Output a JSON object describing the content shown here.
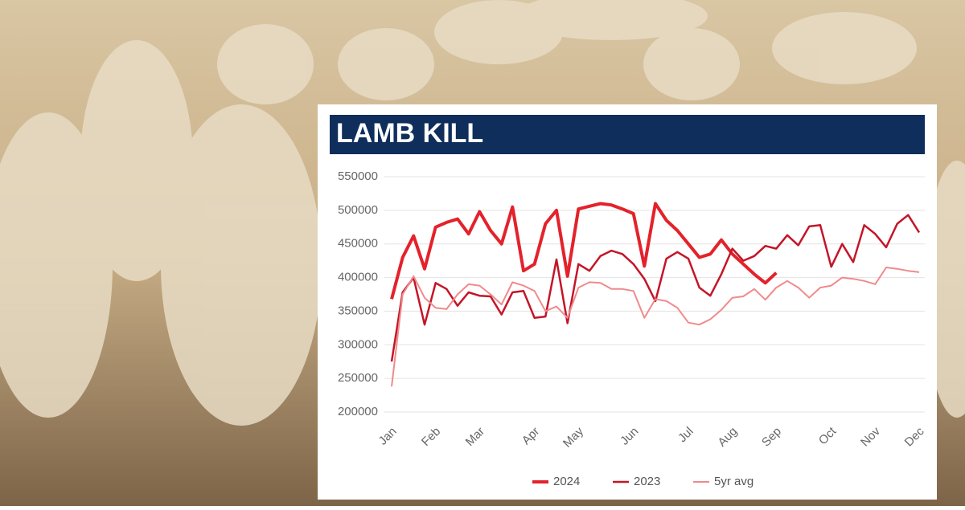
{
  "chart_data": {
    "type": "line",
    "title": "LAMB KILL",
    "categories": [
      "Jan",
      null,
      null,
      null,
      "Feb",
      null,
      null,
      null,
      "Mar",
      null,
      null,
      null,
      null,
      "Apr",
      null,
      null,
      null,
      "May",
      null,
      null,
      null,
      null,
      "Jun",
      null,
      null,
      null,
      null,
      "Jul",
      null,
      null,
      null,
      "Aug",
      null,
      null,
      null,
      "Sep",
      null,
      null,
      null,
      null,
      "Oct",
      null,
      null,
      null,
      "Nov",
      null,
      null,
      null,
      "Dec"
    ],
    "series": [
      {
        "name": "2024",
        "color": "#e3222b",
        "values": [
          368000,
          430000,
          462000,
          413000,
          475000,
          482000,
          487000,
          465000,
          498000,
          470000,
          450000,
          505000,
          410000,
          420000,
          480000,
          500000,
          402000,
          502000,
          506000,
          510000,
          508000,
          502000,
          495000,
          417000,
          510000,
          485000,
          470000,
          450000,
          430000,
          435000,
          456000,
          435000,
          420000,
          405000,
          392000,
          407000,
          null,
          null,
          null,
          null,
          null,
          null,
          null,
          null,
          null,
          null,
          null,
          null,
          null
        ]
      },
      {
        "name": "2023",
        "color": "#c41528",
        "values": [
          275000,
          378000,
          400000,
          330000,
          392000,
          383000,
          358000,
          378000,
          373000,
          372000,
          345000,
          378000,
          380000,
          340000,
          342000,
          427000,
          332000,
          420000,
          410000,
          432000,
          440000,
          435000,
          420000,
          398000,
          365000,
          428000,
          438000,
          428000,
          385000,
          373000,
          405000,
          443000,
          425000,
          432000,
          447000,
          443000,
          463000,
          448000,
          476000,
          478000,
          416000,
          450000,
          423000,
          478000,
          465000,
          445000,
          480000,
          493000,
          467000
        ]
      },
      {
        "name": "5yr avg",
        "color": "#f08a8c",
        "values": [
          238000,
          375000,
          402000,
          370000,
          355000,
          353000,
          375000,
          390000,
          388000,
          375000,
          360000,
          393000,
          388000,
          380000,
          350000,
          357000,
          340000,
          385000,
          393000,
          392000,
          383000,
          383000,
          380000,
          340000,
          368000,
          365000,
          355000,
          333000,
          330000,
          338000,
          352000,
          370000,
          372000,
          383000,
          367000,
          385000,
          395000,
          385000,
          370000,
          385000,
          388000,
          400000,
          398000,
          395000,
          390000,
          415000,
          413000,
          410000,
          408000
        ]
      }
    ],
    "ylim": [
      200000,
      550000
    ],
    "yticks": [
      200000,
      250000,
      300000,
      350000,
      400000,
      450000,
      500000,
      550000
    ],
    "grid": true
  }
}
